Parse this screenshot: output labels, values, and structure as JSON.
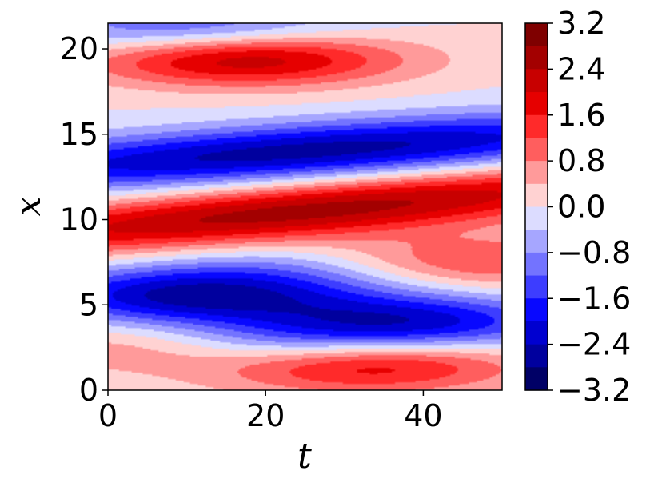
{
  "chart_data": {
    "type": "heatmap",
    "subtype": "filled-contour",
    "title": "",
    "xlabel": "t",
    "ylabel": "x",
    "xlim": [
      0,
      50
    ],
    "ylim": [
      0,
      21.5
    ],
    "xticks": [
      0,
      20,
      40
    ],
    "yticks": [
      0,
      5,
      10,
      15,
      20
    ],
    "colorbar": {
      "vmin": -3.2,
      "vmax": 3.2,
      "levels": 16,
      "tick_values": [
        3.2,
        2.4,
        1.6,
        0.8,
        0.0,
        -0.8,
        -1.6,
        -2.4,
        -3.2
      ],
      "tick_labels": [
        "3.2",
        "2.4",
        "1.6",
        "0.8",
        "0.0",
        "−0.8",
        "−1.6",
        "−2.4",
        "−3.2"
      ],
      "colormap": "seismic",
      "colors_high_to_low": [
        "#7f0000",
        "#a30000",
        "#c80000",
        "#e60000",
        "#ff2a2a",
        "#ff5e5e",
        "#ff9a9a",
        "#ffd2d2",
        "#dcdcff",
        "#a6a6ff",
        "#7373ff",
        "#3d3dff",
        "#0808ff",
        "#0000d0",
        "#00009e",
        "#000066"
      ]
    },
    "bands": [
      {
        "x": 1.5,
        "amp": 2.2,
        "t0": 32,
        "x0": 1.5,
        "slope": 0.0
      },
      {
        "x": 2.0,
        "amp": 2.2,
        "t0": 10,
        "x0": 2.5,
        "slope": 0.0
      },
      {
        "x": 1.8,
        "amp": -2.6,
        "t0": 17,
        "x0": 2.5,
        "slope": 0.0
      },
      {
        "x": 4.0,
        "amp": -2.4,
        "t0": 10,
        "x0": 5.5,
        "slope": 0.0
      },
      {
        "x": 4.0,
        "amp": -2.2,
        "t0": 38,
        "x0": 4.0,
        "slope": 0.0
      },
      {
        "x": 10.5,
        "amp": 2.6,
        "t0": 25,
        "x0": 10.5,
        "slope": 0.04
      },
      {
        "x": 14.0,
        "amp": -2.6,
        "t0": 25,
        "x0": 14.0,
        "slope": 0.03
      },
      {
        "x": 19.5,
        "amp": 2.6,
        "t0": 17,
        "x0": 19.5,
        "slope": 0.0
      },
      {
        "x": 21.0,
        "amp": -1.6,
        "t0": 11,
        "x0": 21.0,
        "slope": 0.0
      },
      {
        "x": 8.0,
        "amp": 1.4,
        "t0": 45,
        "x0": 7.5,
        "slope": 0.0
      },
      {
        "x": 5.0,
        "amp": -0.9,
        "t0": 25,
        "x0": 7.0,
        "slope": 0.0
      }
    ]
  }
}
